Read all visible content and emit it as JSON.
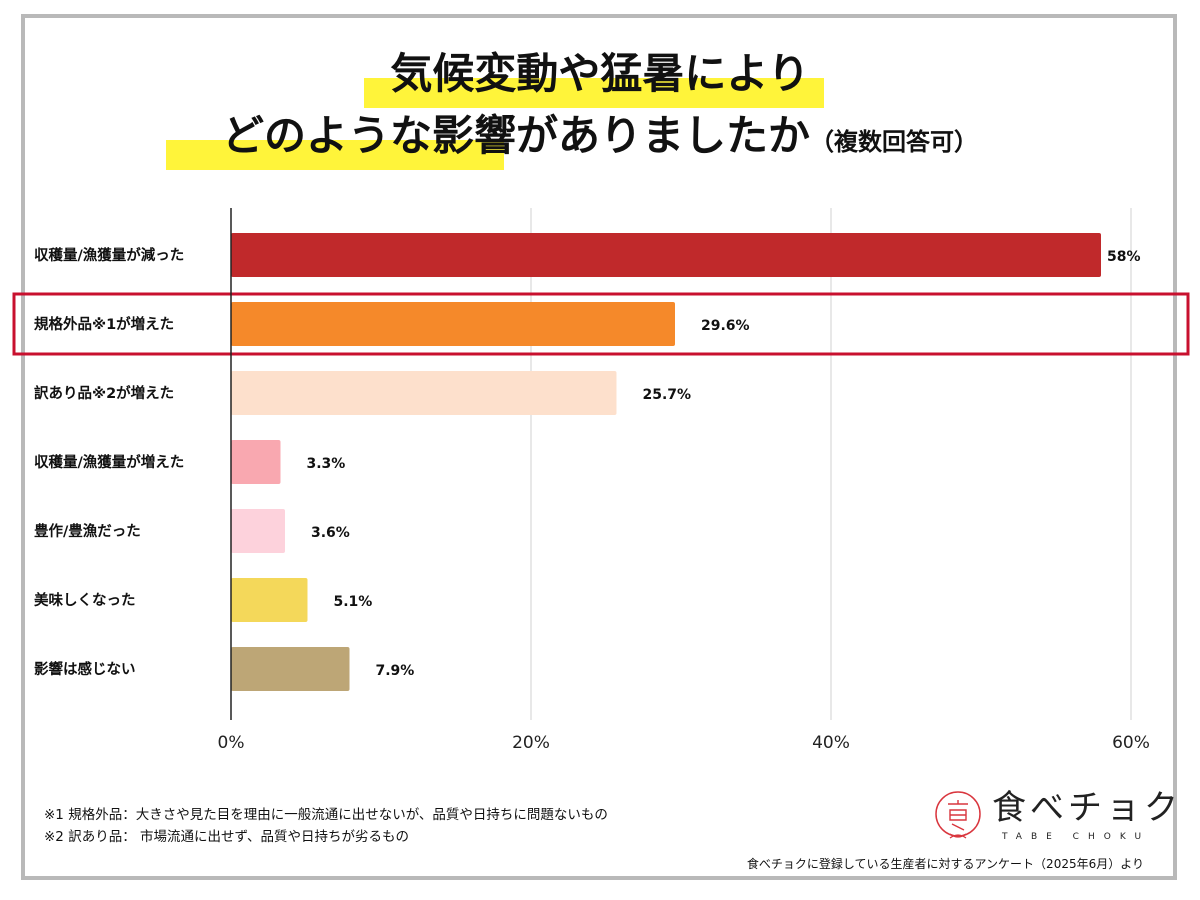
{
  "title": {
    "line1": "気候変動や猛暑により",
    "line2": "どのような影響がありましたか",
    "note": "（複数回答可）"
  },
  "chart_data": {
    "type": "bar",
    "orientation": "horizontal",
    "categories": [
      "収穫量/漁獲量が減った",
      "規格外品※1が増えた",
      "訳あり品※2が増えた",
      "収穫量/漁獲量が増えた",
      "豊作/豊漁だった",
      "美味しくなった",
      "影響は感じない"
    ],
    "values": [
      58,
      29.6,
      25.7,
      3.3,
      3.6,
      5.1,
      7.9
    ],
    "data_labels": [
      "58%",
      "29.6%",
      "25.7%",
      "3.3%",
      "3.6%",
      "5.1%",
      "7.9%"
    ],
    "colors": [
      "#c0292b",
      "#f5892a",
      "#fde0cc",
      "#f9a8b0",
      "#fdd2dc",
      "#f4d85a",
      "#bda676"
    ],
    "xlim": [
      0,
      60
    ],
    "xticks": [
      0,
      20,
      40,
      60
    ],
    "xtick_labels": [
      "0%",
      "20%",
      "40%",
      "60%"
    ],
    "grid": true,
    "highlighted_category": "規格外品※1が増えた",
    "highlight_color": "#c8102e"
  },
  "footnotes": [
    "※1 規格外品：大きさや見た目を理由に一般流通に出せないが、品質や日持ちに問題ないもの",
    "※2 訳あり品： 市場流通に出せず、品質や日持ちが劣るもの"
  ],
  "logo": {
    "name": "食べチョク",
    "sub": "TABE CHOKU"
  },
  "source": "食べチョクに登録している生産者に対するアンケート（2025年6月）より"
}
